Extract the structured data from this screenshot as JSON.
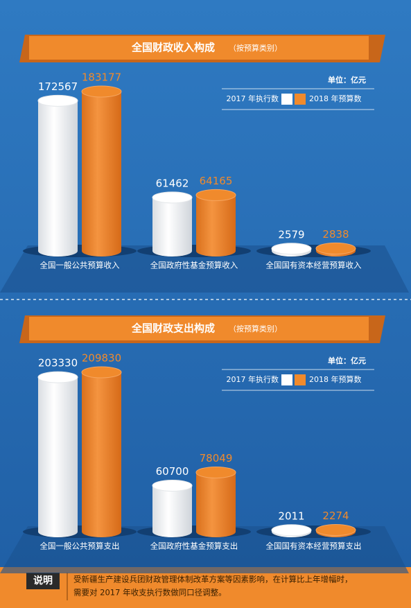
{
  "chart_data": [
    {
      "type": "bar",
      "title": "全国财政收入构成",
      "subtitle": "（按预算类别）",
      "unit": "单位：亿元",
      "categories": [
        "全国一般公共预算收入",
        "全国政府性基金预算收入",
        "全国国有资本经营预算收入"
      ],
      "series": [
        {
          "name": "2017 年执行数",
          "color": "#ffffff",
          "values": [
            172567,
            61462,
            2579
          ]
        },
        {
          "name": "2018 年预算数",
          "color": "#f08a2c",
          "values": [
            183177,
            64165,
            2838
          ]
        }
      ]
    },
    {
      "type": "bar",
      "title": "全国财政支出构成",
      "subtitle": "（按预算类别）",
      "unit": "单位：亿元",
      "categories": [
        "全国一般公共预算支出",
        "全国政府性基金预算支出",
        "全国国有资本经营预算支出"
      ],
      "series": [
        {
          "name": "2017 年执行数",
          "color": "#ffffff",
          "values": [
            203330,
            60700,
            2011
          ]
        },
        {
          "name": "2018 年预算数",
          "color": "#f08a2c",
          "values": [
            209830,
            78049,
            2274
          ]
        }
      ]
    }
  ],
  "note": {
    "label": "说明",
    "text": [
      "受新疆生产建设兵团财政管理体制改革方案等因素影响，在计算比上年增幅时，",
      "需要对 2017 年收支执行数做同口径调整。"
    ]
  }
}
